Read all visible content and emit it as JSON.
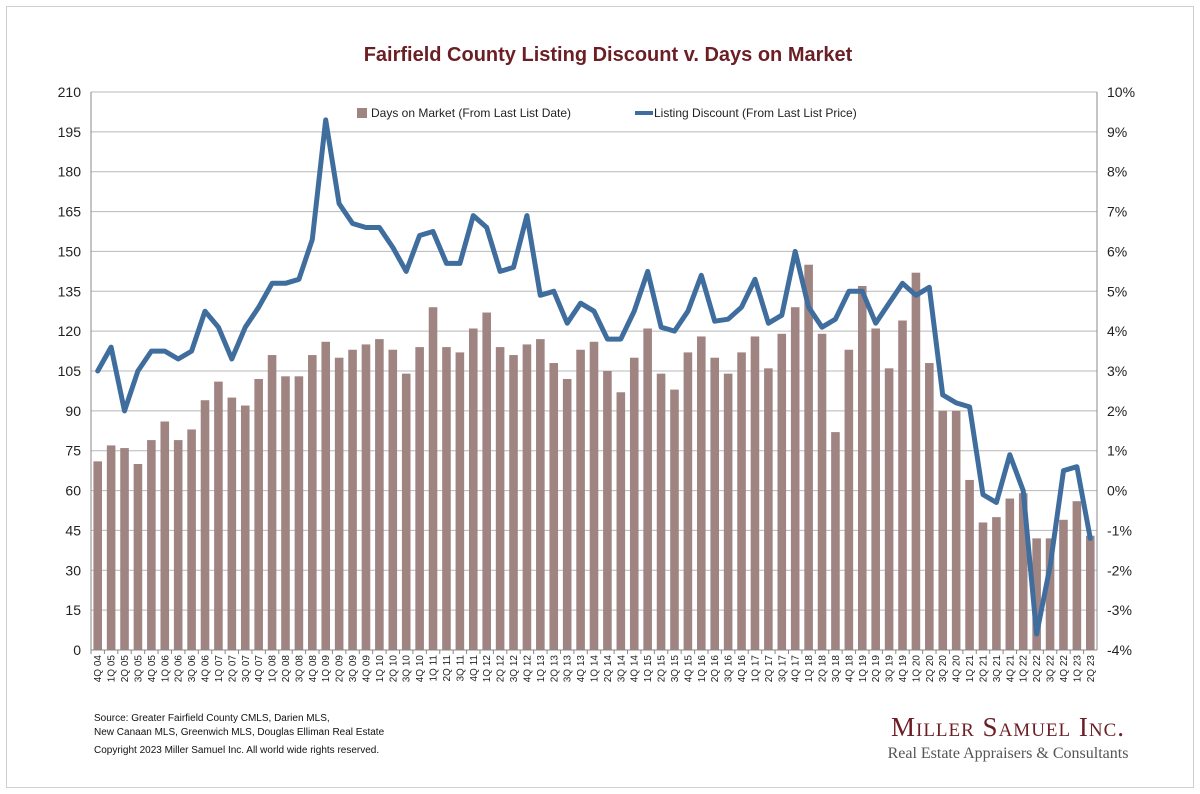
{
  "chart_data": {
    "type": "bar+line",
    "title": "Fairfield County Listing Discount v. Days on Market",
    "categories": [
      "4Q 04",
      "1Q 05",
      "2Q 05",
      "3Q 05",
      "4Q 05",
      "1Q 06",
      "2Q 06",
      "3Q 06",
      "4Q 06",
      "1Q 07",
      "2Q 07",
      "3Q 07",
      "4Q 07",
      "1Q 08",
      "2Q 08",
      "3Q 08",
      "4Q 08",
      "1Q 09",
      "2Q 09",
      "3Q 09",
      "4Q 09",
      "1Q 10",
      "2Q 10",
      "3Q 10",
      "4Q 10",
      "1Q 11",
      "2Q 11",
      "3Q 11",
      "4Q 11",
      "1Q 12",
      "2Q 12",
      "3Q 12",
      "4Q 12",
      "1Q 13",
      "2Q 13",
      "3Q 13",
      "4Q 13",
      "1Q 14",
      "2Q 14",
      "3Q 14",
      "4Q 14",
      "1Q 15",
      "2Q 15",
      "3Q 15",
      "4Q 15",
      "1Q 16",
      "2Q 16",
      "3Q 16",
      "4Q 16",
      "1Q 17",
      "2Q 17",
      "3Q 17",
      "4Q 17",
      "1Q 18",
      "2Q 18",
      "3Q 18",
      "4Q 18",
      "1Q 19",
      "2Q 19",
      "3Q 19",
      "4Q 19",
      "1Q 20",
      "2Q 20",
      "3Q 20",
      "4Q 20",
      "1Q 21",
      "2Q 21",
      "3Q 21",
      "4Q 21",
      "1Q 22",
      "2Q 22",
      "3Q 22",
      "4Q 22",
      "1Q 23",
      "2Q 23"
    ],
    "series": [
      {
        "name": "Days on Market (From Last List Date)",
        "type": "bar",
        "axis": "left",
        "color": "#a08482",
        "values": [
          71,
          77,
          76,
          70,
          79,
          86,
          79,
          83,
          94,
          101,
          95,
          92,
          102,
          111,
          103,
          103,
          111,
          116,
          110,
          113,
          115,
          117,
          113,
          104,
          114,
          129,
          114,
          112,
          121,
          127,
          114,
          111,
          115,
          117,
          108,
          102,
          113,
          116,
          105,
          97,
          110,
          121,
          104,
          98,
          112,
          118,
          110,
          104,
          112,
          118,
          106,
          119,
          129,
          145,
          119,
          82,
          113,
          137,
          121,
          106,
          124,
          142,
          108,
          90,
          90,
          64,
          48,
          50,
          57,
          59,
          42,
          42,
          49,
          56,
          43
        ]
      },
      {
        "name": "Listing Discount (From Last List Price)",
        "type": "line",
        "axis": "right",
        "color": "#3f6e9e",
        "values": [
          3.0,
          3.6,
          2.0,
          3.0,
          3.5,
          3.5,
          3.3,
          3.5,
          4.5,
          4.1,
          3.3,
          4.1,
          4.6,
          5.2,
          5.2,
          5.3,
          6.3,
          9.3,
          7.2,
          6.7,
          6.6,
          6.6,
          6.1,
          5.5,
          6.4,
          6.5,
          5.7,
          5.7,
          6.9,
          6.6,
          5.5,
          5.6,
          6.9,
          4.9,
          5.0,
          4.2,
          4.7,
          4.5,
          3.8,
          3.8,
          4.5,
          5.5,
          4.1,
          4.0,
          4.5,
          5.4,
          4.25,
          4.3,
          4.6,
          5.3,
          4.2,
          4.4,
          6.0,
          4.6,
          4.1,
          4.3,
          5.0,
          5.0,
          4.2,
          4.7,
          5.2,
          4.9,
          5.1,
          2.4,
          2.2,
          2.1,
          -0.1,
          -0.3,
          0.9,
          0.0,
          -3.6,
          -1.9,
          0.5,
          0.6,
          -1.2
        ]
      }
    ],
    "y_left": {
      "min": 0,
      "max": 210,
      "step": 15,
      "ticks": [
        "0",
        "15",
        "30",
        "45",
        "60",
        "75",
        "90",
        "105",
        "120",
        "135",
        "150",
        "165",
        "180",
        "195",
        "210"
      ]
    },
    "y_right": {
      "min": -4,
      "max": 10,
      "step": 1,
      "ticks": [
        "-4%",
        "-3%",
        "-2%",
        "-1%",
        "0%",
        "1%",
        "2%",
        "3%",
        "4%",
        "5%",
        "6%",
        "7%",
        "8%",
        "9%",
        "10%"
      ]
    },
    "grid": true,
    "legend": "top-center"
  },
  "footer": {
    "source_line1": "Source:  Greater Fairfield County CMLS, Darien MLS,",
    "source_line2": "New Canaan MLS, Greenwich MLS, Douglas Elliman Real Estate",
    "copyright": "Copyright 2023 Miller Samuel Inc.  All world wide rights reserved."
  },
  "logo": {
    "name": "Miller Samuel Inc.",
    "tagline": "Real Estate Appraisers & Consultants"
  }
}
